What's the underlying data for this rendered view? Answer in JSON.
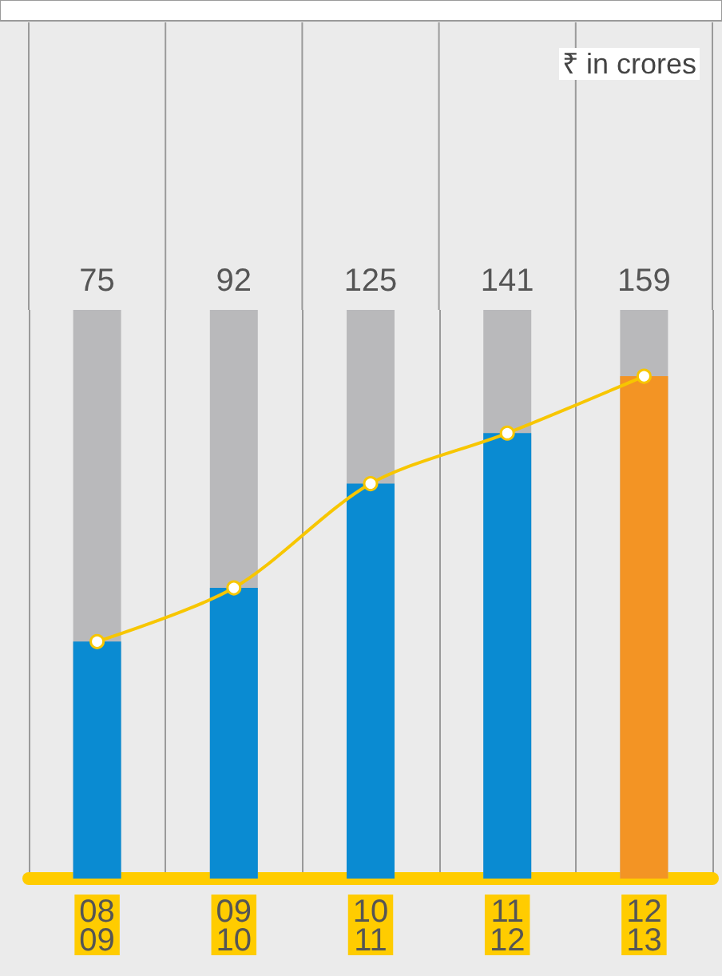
{
  "chart_data": {
    "type": "bar",
    "categories": [
      "08\n09",
      "09\n10",
      "10\n11",
      "11\n12",
      "12\n13"
    ],
    "values": [
      75,
      92,
      125,
      141,
      159
    ],
    "colors": [
      "#0a8bd2",
      "#0a8bd2",
      "#0a8bd2",
      "#0a8bd2",
      "#f39424"
    ],
    "series": [
      {
        "type": "line",
        "color": "#f7c600",
        "values": [
          75,
          92,
          125,
          141,
          159
        ],
        "marker": "circle",
        "value_labels": [
          null,
          null,
          null,
          null,
          null
        ]
      }
    ],
    "data_labels": true,
    "annotations": [
      "₹ in crores"
    ],
    "grid": "x"
  }
}
